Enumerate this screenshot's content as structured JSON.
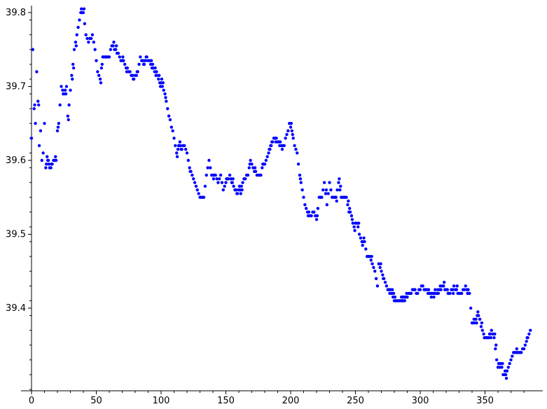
{
  "chart_data": {
    "type": "scatter",
    "title": "",
    "xlabel": "",
    "ylabel": "",
    "grid": false,
    "legend": "none",
    "xlim": [
      0,
      390
    ],
    "ylim": [
      39.29,
      39.812
    ],
    "x_ticks": [
      0,
      50,
      100,
      150,
      200,
      250,
      300,
      350
    ],
    "y_ticks": [
      39.4,
      39.5,
      39.6,
      39.7,
      39.8
    ],
    "x_tick_labels": [
      "0",
      "50",
      "100",
      "150",
      "200",
      "250",
      "300",
      "350"
    ],
    "y_tick_labels": [
      "39.4",
      "39.5",
      "39.6",
      "39.7",
      "39.8"
    ],
    "marker_color": "#0000ff",
    "series": [
      {
        "anchors": [
          [
            0,
            39.63
          ],
          [
            1,
            39.75
          ],
          [
            2,
            39.67
          ],
          [
            3,
            39.65
          ],
          [
            4,
            39.72
          ],
          [
            5,
            39.68
          ],
          [
            6,
            39.62
          ],
          [
            7,
            39.64
          ],
          [
            8,
            39.6
          ],
          [
            9,
            39.61
          ],
          [
            10,
            39.65
          ],
          [
            11,
            39.59
          ],
          [
            12,
            39.605
          ],
          [
            13,
            39.6
          ],
          [
            14,
            39.59
          ],
          [
            15,
            39.59
          ],
          [
            17,
            39.6
          ],
          [
            19,
            39.6
          ],
          [
            20,
            39.64
          ],
          [
            21,
            39.65
          ],
          [
            23,
            39.7
          ],
          [
            25,
            39.69
          ],
          [
            27,
            39.7
          ],
          [
            28,
            39.66
          ],
          [
            30,
            39.695
          ],
          [
            33,
            39.75
          ],
          [
            36,
            39.78
          ],
          [
            38,
            39.8
          ],
          [
            40,
            39.8
          ],
          [
            42,
            39.77
          ],
          [
            44,
            39.76
          ],
          [
            47,
            39.77
          ],
          [
            49,
            39.75
          ],
          [
            51,
            39.72
          ],
          [
            53,
            39.71
          ],
          [
            55,
            39.74
          ],
          [
            58,
            39.74
          ],
          [
            60,
            39.74
          ],
          [
            62,
            39.755
          ],
          [
            65,
            39.75
          ],
          [
            68,
            39.74
          ],
          [
            72,
            39.73
          ],
          [
            75,
            39.72
          ],
          [
            79,
            39.71
          ],
          [
            82,
            39.72
          ],
          [
            84,
            39.74
          ],
          [
            87,
            39.73
          ],
          [
            89,
            39.74
          ],
          [
            92,
            39.73
          ],
          [
            95,
            39.72
          ],
          [
            98,
            39.71
          ],
          [
            101,
            39.7
          ],
          [
            103,
            39.69
          ],
          [
            105,
            39.67
          ],
          [
            108,
            39.645
          ],
          [
            110,
            39.63
          ],
          [
            112,
            39.61
          ],
          [
            114,
            39.62
          ],
          [
            116,
            39.615
          ],
          [
            118,
            39.62
          ],
          [
            120,
            39.61
          ],
          [
            122,
            39.59
          ],
          [
            124,
            39.58
          ],
          [
            126,
            39.57
          ],
          [
            128,
            39.56
          ],
          [
            130,
            39.55
          ],
          [
            133,
            39.55
          ],
          [
            135,
            39.58
          ],
          [
            137,
            39.6
          ],
          [
            139,
            39.58
          ],
          [
            142,
            39.58
          ],
          [
            144,
            39.57
          ],
          [
            146,
            39.58
          ],
          [
            148,
            39.56
          ],
          [
            150,
            39.57
          ],
          [
            153,
            39.58
          ],
          [
            156,
            39.565
          ],
          [
            159,
            39.555
          ],
          [
            161,
            39.56
          ],
          [
            163,
            39.57
          ],
          [
            165,
            39.575
          ],
          [
            167,
            39.58
          ],
          [
            169,
            39.6
          ],
          [
            171,
            39.59
          ],
          [
            174,
            39.58
          ],
          [
            177,
            39.58
          ],
          [
            179,
            39.595
          ],
          [
            181,
            39.6
          ],
          [
            183,
            39.61
          ],
          [
            185,
            39.62
          ],
          [
            187,
            39.63
          ],
          [
            189,
            39.63
          ],
          [
            191,
            39.625
          ],
          [
            193,
            39.62
          ],
          [
            195,
            39.62
          ],
          [
            196,
            39.63
          ],
          [
            198,
            39.64
          ],
          [
            199,
            39.65
          ],
          [
            201,
            39.64
          ],
          [
            203,
            39.62
          ],
          [
            205,
            39.61
          ],
          [
            207,
            39.58
          ],
          [
            209,
            39.56
          ],
          [
            211,
            39.54
          ],
          [
            213,
            39.53
          ],
          [
            215,
            39.525
          ],
          [
            218,
            39.53
          ],
          [
            220,
            39.52
          ],
          [
            222,
            39.55
          ],
          [
            224,
            39.55
          ],
          [
            226,
            39.57
          ],
          [
            228,
            39.54
          ],
          [
            230,
            39.57
          ],
          [
            232,
            39.55
          ],
          [
            235,
            39.55
          ],
          [
            237,
            39.57
          ],
          [
            239,
            39.55
          ],
          [
            241,
            39.55
          ],
          [
            243,
            39.55
          ],
          [
            245,
            39.53
          ],
          [
            247,
            39.525
          ],
          [
            249,
            39.51
          ],
          [
            251,
            39.515
          ],
          [
            253,
            39.5
          ],
          [
            255,
            39.49
          ],
          [
            257,
            39.49
          ],
          [
            259,
            39.47
          ],
          [
            261,
            39.47
          ],
          [
            263,
            39.46
          ],
          [
            265,
            39.45
          ],
          [
            267,
            39.43
          ],
          [
            268,
            39.46
          ],
          [
            270,
            39.45
          ],
          [
            272,
            39.44
          ],
          [
            274,
            39.43
          ],
          [
            276,
            39.425
          ],
          [
            278,
            39.42
          ],
          [
            280,
            39.41
          ],
          [
            284,
            39.41
          ],
          [
            287,
            39.41
          ],
          [
            290,
            39.415
          ],
          [
            292,
            39.42
          ],
          [
            295,
            39.425
          ],
          [
            298,
            39.42
          ],
          [
            301,
            39.43
          ],
          [
            304,
            39.425
          ],
          [
            307,
            39.42
          ],
          [
            310,
            39.42
          ],
          [
            314,
            39.42
          ],
          [
            317,
            39.43
          ],
          [
            320,
            39.425
          ],
          [
            323,
            39.42
          ],
          [
            326,
            39.43
          ],
          [
            329,
            39.42
          ],
          [
            332,
            39.42
          ],
          [
            335,
            39.43
          ],
          [
            338,
            39.42
          ],
          [
            340,
            39.38
          ],
          [
            342,
            39.38
          ],
          [
            344,
            39.39
          ],
          [
            346,
            39.385
          ],
          [
            348,
            39.37
          ],
          [
            350,
            39.36
          ],
          [
            353,
            39.36
          ],
          [
            355,
            39.37
          ],
          [
            357,
            39.36
          ],
          [
            358,
            39.345
          ],
          [
            360,
            39.32
          ],
          [
            362,
            39.325
          ],
          [
            364,
            39.31
          ],
          [
            366,
            39.31
          ],
          [
            368,
            39.32
          ],
          [
            370,
            39.33
          ],
          [
            372,
            39.34
          ],
          [
            375,
            39.34
          ],
          [
            378,
            39.34
          ],
          [
            381,
            39.35
          ],
          [
            383,
            39.36
          ],
          [
            385,
            39.37
          ]
        ]
      }
    ]
  }
}
